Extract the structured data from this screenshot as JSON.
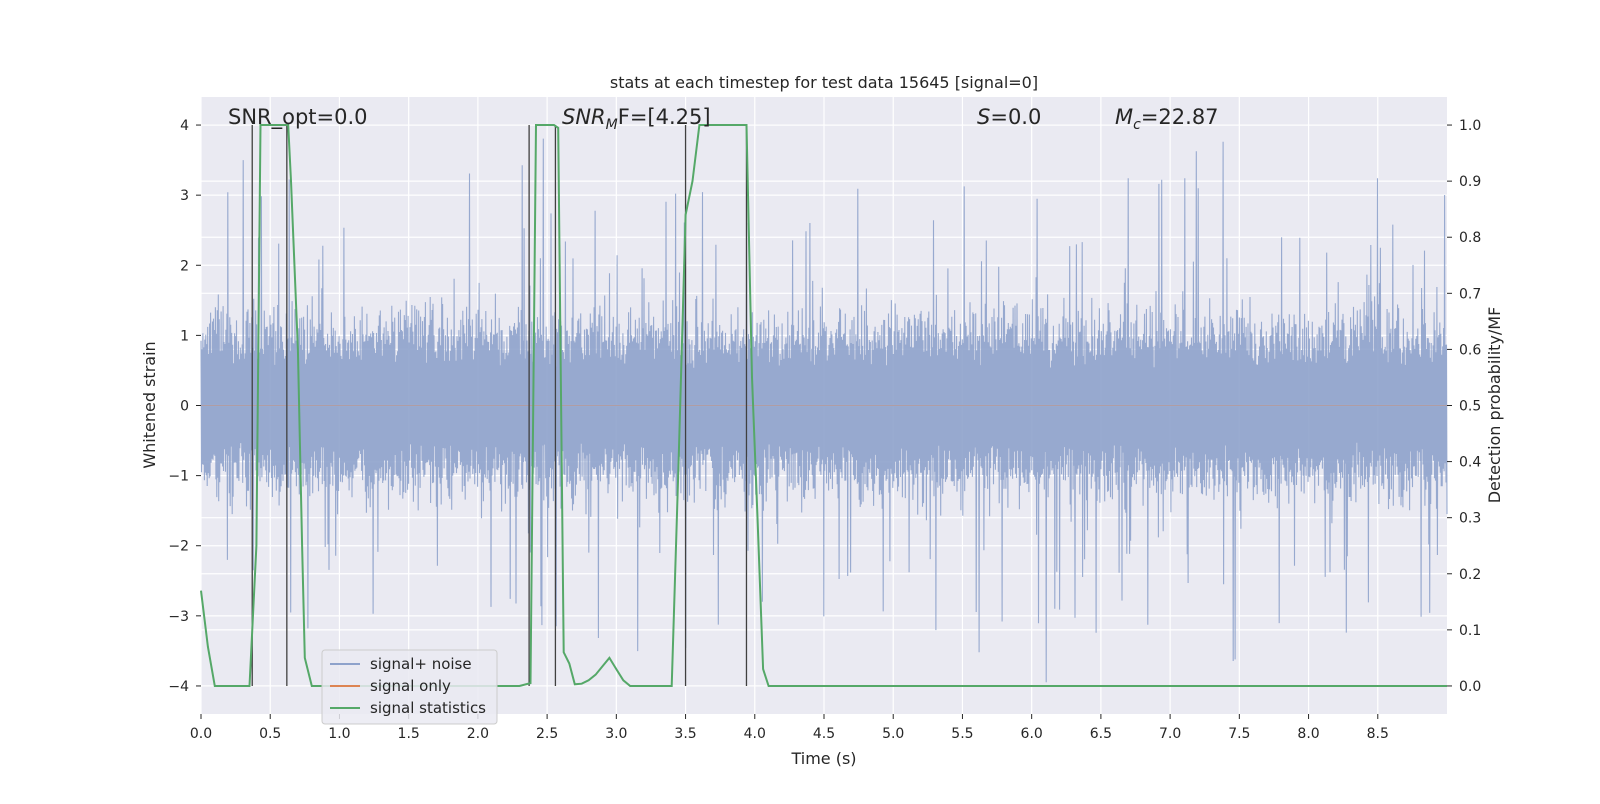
{
  "chart_data": {
    "type": "line",
    "title": "stats at each timestep for test data 15645 [signal=0]",
    "xlabel": "Time (s)",
    "ylabel": "Whitened strain",
    "ylabel_right": "Detection probability/MF",
    "xlim": [
      0.0,
      9.0
    ],
    "ylim": [
      -4.4,
      4.4
    ],
    "ylim_right": [
      -0.05,
      1.05
    ],
    "x_ticks": [
      "0.0",
      "0.5",
      "1.0",
      "1.5",
      "2.0",
      "2.5",
      "3.0",
      "3.5",
      "4.0",
      "4.5",
      "5.0",
      "5.5",
      "6.0",
      "6.5",
      "7.0",
      "7.5",
      "8.0",
      "8.5"
    ],
    "x_tick_values": [
      0.0,
      0.5,
      1.0,
      1.5,
      2.0,
      2.5,
      3.0,
      3.5,
      4.0,
      4.5,
      5.0,
      5.5,
      6.0,
      6.5,
      7.0,
      7.5,
      8.0,
      8.5
    ],
    "y_ticks": [
      "4",
      "3",
      "2",
      "1",
      "0",
      "−1",
      "−2",
      "−3",
      "−4"
    ],
    "y_tick_values": [
      4,
      3,
      2,
      1,
      0,
      -1,
      -2,
      -3,
      -4
    ],
    "y_right_ticks": [
      "1.0",
      "0.9",
      "0.8",
      "0.7",
      "0.6",
      "0.5",
      "0.4",
      "0.3",
      "0.2",
      "0.1",
      "0.0"
    ],
    "y_right_tick_values": [
      1.0,
      0.9,
      0.8,
      0.7,
      0.6,
      0.5,
      0.4,
      0.3,
      0.2,
      0.1,
      0.0
    ],
    "grid": true,
    "legend_position": "lower-left",
    "annotations": {
      "snr_opt": "SNR_opt=0.0",
      "snr_mf_main": "SNR",
      "snr_mf_sub": "M",
      "snr_mf_rest": "F=[4.25]",
      "s_main": "S",
      "s_rest": "=0.0",
      "mc_main": "M",
      "mc_sub": "c",
      "mc_rest": "=22.87"
    },
    "series": [
      {
        "name": "signal+ noise",
        "color": "#8ea2cb",
        "kind": "noise",
        "amplitude_typical": 1.6,
        "amplitude_peak": 4.0
      },
      {
        "name": "signal only",
        "color": "#dd8452",
        "kind": "flat",
        "value": 0.0
      },
      {
        "name": "signal statistics",
        "color": "#55a868",
        "axis": "right",
        "x": [
          0.0,
          0.05,
          0.1,
          0.15,
          0.2,
          0.25,
          0.3,
          0.35,
          0.4,
          0.43,
          0.47,
          0.5,
          0.55,
          0.6,
          0.63,
          0.65,
          0.7,
          0.73,
          0.75,
          0.8,
          0.9,
          1.0,
          1.5,
          2.0,
          2.3,
          2.38,
          2.42,
          2.46,
          2.5,
          2.55,
          2.58,
          2.62,
          2.66,
          2.7,
          2.75,
          2.8,
          2.85,
          2.9,
          2.95,
          3.0,
          3.05,
          3.1,
          3.2,
          3.3,
          3.4,
          3.45,
          3.5,
          3.55,
          3.6,
          3.65,
          3.7,
          3.8,
          3.9,
          3.94,
          3.98,
          4.02,
          4.06,
          4.1,
          4.2,
          5.0,
          6.0,
          7.0,
          8.0,
          9.0
        ],
        "y": [
          0.17,
          0.07,
          0.0,
          0.0,
          0.0,
          0.0,
          0.0,
          0.0,
          0.25,
          1.0,
          1.0,
          1.0,
          1.0,
          1.0,
          1.0,
          0.9,
          0.6,
          0.25,
          0.05,
          0.0,
          0.0,
          0.0,
          0.0,
          0.0,
          0.0,
          0.005,
          1.0,
          1.0,
          1.0,
          1.0,
          0.995,
          0.06,
          0.04,
          0.003,
          0.004,
          0.01,
          0.02,
          0.035,
          0.05,
          0.03,
          0.01,
          0.0,
          0.0,
          0.0,
          0.0,
          0.4,
          0.84,
          0.9,
          1.0,
          1.0,
          1.0,
          1.0,
          1.0,
          1.0,
          0.55,
          0.3,
          0.03,
          0.0,
          0.0,
          0.0,
          0.0,
          0.0,
          0.0,
          0.0
        ]
      },
      {
        "name": "",
        "color": "#404040",
        "kind": "vlines",
        "x": [
          0.37,
          0.62,
          2.37,
          2.56,
          3.5,
          3.94
        ]
      }
    ]
  }
}
